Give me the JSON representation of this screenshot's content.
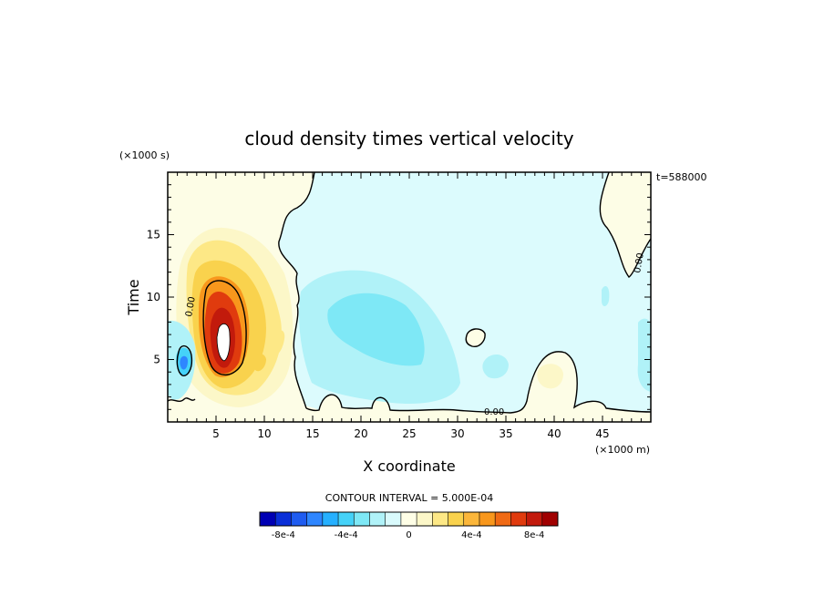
{
  "chart_data": {
    "type": "heatmap",
    "title": "cloud density times vertical velocity",
    "xlabel": "X coordinate",
    "ylabel": "Time",
    "x_units": "(×1000 m)",
    "y_units": "(×1000 s)",
    "time_stamp": "t=588000",
    "xlim": [
      0,
      50
    ],
    "ylim": [
      0,
      20
    ],
    "x_ticks": [
      5,
      10,
      15,
      20,
      25,
      30,
      35,
      40,
      45
    ],
    "y_ticks": [
      5,
      10,
      15
    ],
    "contour_label": "0.00",
    "contour_interval_text": "CONTOUR INTERVAL = 5.000E-04",
    "colorbar": {
      "levels": [
        -0.0009,
        -0.0008,
        -0.0007,
        -0.0006,
        -0.0005,
        -0.0004,
        -0.0003,
        -0.0002,
        -0.0001,
        0,
        0.0001,
        0.0002,
        0.0003,
        0.0004,
        0.0005,
        0.0006,
        0.0007,
        0.0008,
        0.0009
      ],
      "colors": [
        "#0000b4",
        "#0a2fd8",
        "#1f5cf0",
        "#2e86ff",
        "#26b0ff",
        "#45d2f8",
        "#7ee8f6",
        "#b0f2f8",
        "#d9fafc",
        "#fefee6",
        "#fcf7c8",
        "#fde886",
        "#f9d24d",
        "#fbb63a",
        "#f8971c",
        "#f06a14",
        "#e03b0e",
        "#c21a0c",
        "#a00000"
      ],
      "tick_labels": [
        "-8e-4",
        "-4e-4",
        "0",
        "4e-4",
        "8e-4"
      ],
      "tick_values": [
        -0.0008,
        -0.0004,
        0,
        0.0004,
        0.0008
      ]
    }
  }
}
